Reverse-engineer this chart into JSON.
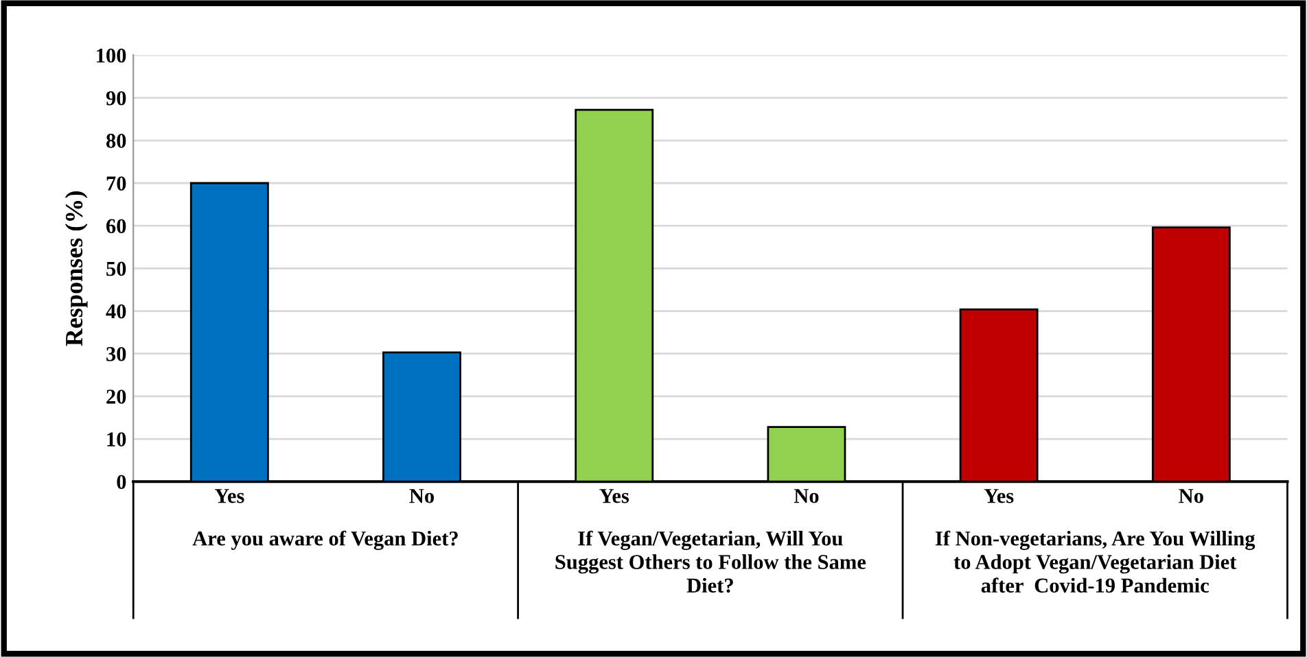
{
  "chart_data": {
    "type": "bar",
    "ylabel": "Responses (%)",
    "categories": [
      "Yes",
      "No",
      "Yes",
      "No",
      "Yes",
      "No"
    ],
    "values": [
      70,
      30.3,
      87.2,
      12.8,
      40.4,
      59.6
    ],
    "colors": [
      "#0070c0",
      "#0070c0",
      "#92d050",
      "#92d050",
      "#c00000",
      "#c00000"
    ],
    "ylim": [
      0,
      100
    ],
    "yticks": [
      0,
      10,
      20,
      30,
      40,
      50,
      60,
      70,
      80,
      90,
      100
    ],
    "grid": "y",
    "legend": false,
    "annotations": [
      "Are you aware of Vegan Diet?",
      "If Vegan/Vegetarian, Will You\nSuggest Others to Follow the Same\nDiet?",
      "If Non-vegetarians, Are You Willing\nto Adopt Vegan/Vegetarian Diet\nafter  Covid-19 Pandemic"
    ]
  }
}
